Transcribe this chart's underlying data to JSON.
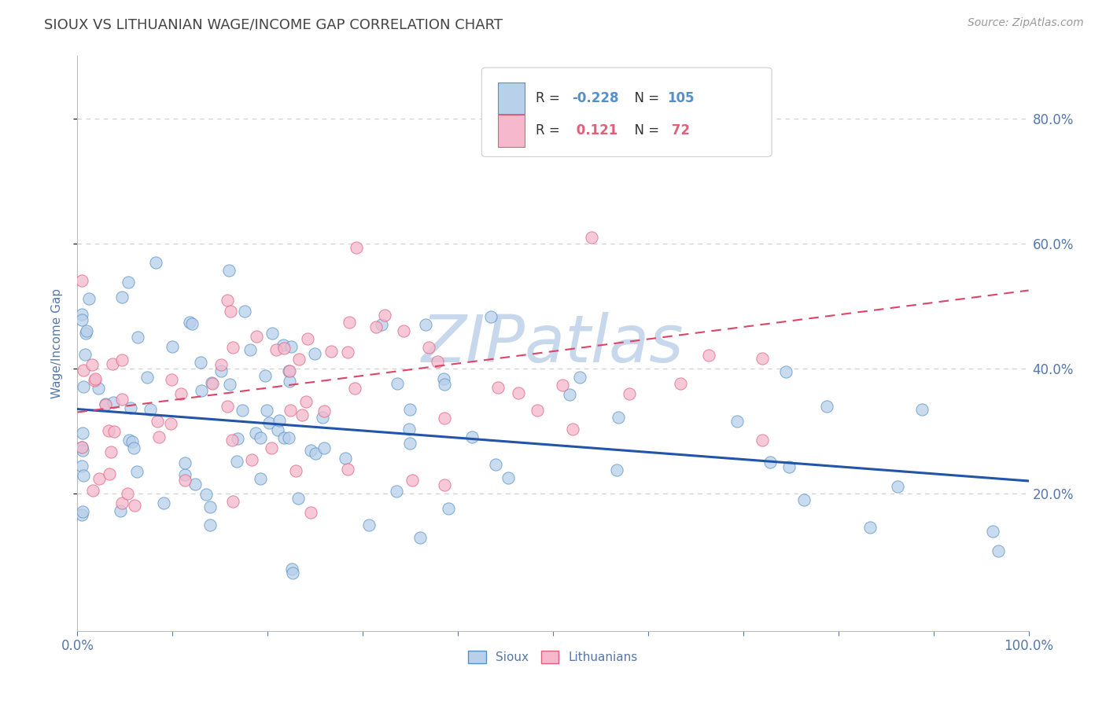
{
  "title": "SIOUX VS LITHUANIAN WAGE/INCOME GAP CORRELATION CHART",
  "source_text": "Source: ZipAtlas.com",
  "ylabel": "Wage/Income Gap",
  "xlim": [
    0.0,
    1.0
  ],
  "ylim": [
    -0.02,
    0.9
  ],
  "xticks": [
    0.0,
    0.1,
    0.2,
    0.3,
    0.4,
    0.5,
    0.6,
    0.7,
    0.8,
    0.9,
    1.0
  ],
  "xticklabels": [
    "0.0%",
    "",
    "",
    "",
    "",
    "",
    "",
    "",
    "",
    "",
    "100.0%"
  ],
  "ytick_positions": [
    0.2,
    0.4,
    0.6,
    0.8
  ],
  "yticklabels": [
    "20.0%",
    "40.0%",
    "60.0%",
    "80.0%"
  ],
  "r1": -0.228,
  "n1": 105,
  "r2": 0.121,
  "n2": 72,
  "color_sioux_fill": "#b8d0ea",
  "color_sioux_edge": "#5590c8",
  "color_lith_fill": "#f5b8cc",
  "color_lith_edge": "#e0607a",
  "color_line_sioux": "#2255aa",
  "color_line_lith": "#dd4466",
  "background_color": "#ffffff",
  "grid_color": "#cccccc",
  "watermark_color": "#c8d8ec",
  "title_color": "#444444",
  "tick_color": "#5577aa",
  "sioux_line_y0": 0.335,
  "sioux_line_y1": 0.22,
  "lith_line_x0": 0.0,
  "lith_line_x1": 1.0,
  "lith_line_y0": 0.33,
  "lith_line_y1": 0.525
}
